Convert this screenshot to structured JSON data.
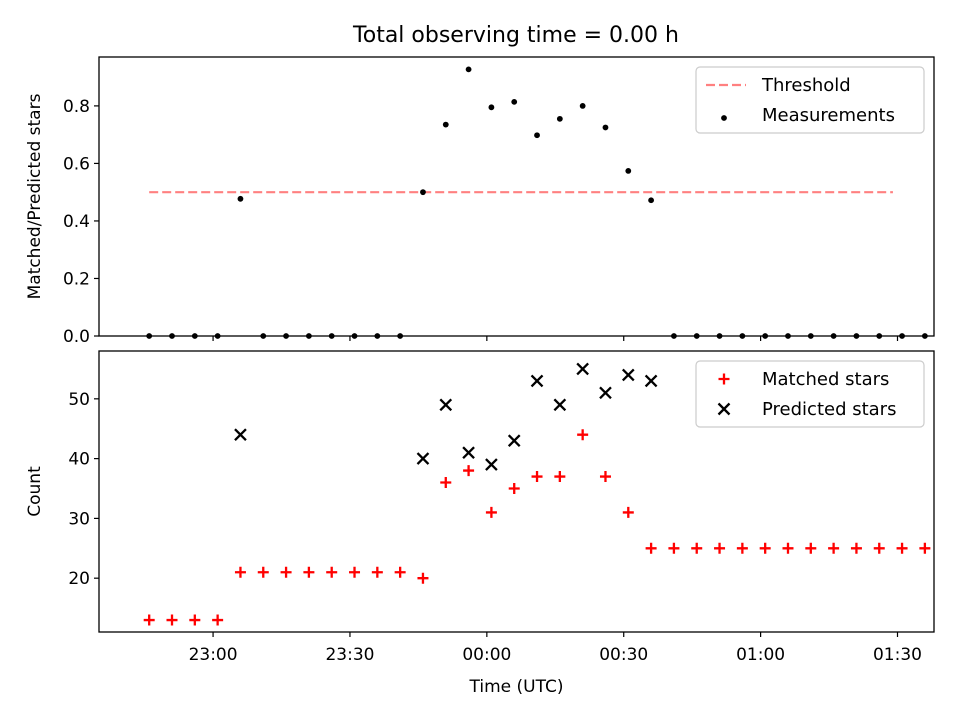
{
  "title": "Total observing time = 0.00 h",
  "colors": {
    "threshold": "#ff8080",
    "measurement": "#000000",
    "matched": "#ff0000",
    "predicted": "#000000"
  },
  "chart_data": [
    {
      "type": "scatter",
      "ylabel": "Matched/Predicted stars",
      "xlabel": "",
      "ylim": [
        0,
        0.97
      ],
      "yticks": [
        "0.0",
        "0.2",
        "0.4",
        "0.6",
        "0.8"
      ],
      "grid": false,
      "legend": {
        "position": "top-right",
        "entries": [
          "Threshold",
          "Measurements"
        ]
      },
      "threshold": {
        "name": "Threshold",
        "value": 0.5,
        "x_range": [
          "22:46",
          "01:29"
        ]
      },
      "series": [
        {
          "name": "Measurements",
          "marker": "dot",
          "x": [
            "22:46",
            "22:51",
            "22:56",
            "23:01",
            "23:06",
            "23:11",
            "23:16",
            "23:21",
            "23:26",
            "23:31",
            "23:36",
            "23:41",
            "23:46",
            "23:51",
            "23:56",
            "00:01",
            "00:06",
            "00:11",
            "00:16",
            "00:21",
            "00:26",
            "00:31",
            "00:36",
            "00:41",
            "00:46",
            "00:51",
            "00:56",
            "01:01",
            "01:06",
            "01:11",
            "01:16",
            "01:21",
            "01:26",
            "01:31",
            "01:36"
          ],
          "y": [
            0,
            0,
            0,
            0,
            0.477,
            0,
            0,
            0,
            0,
            0,
            0,
            0,
            0.5,
            0.735,
            0.927,
            0.795,
            0.814,
            0.698,
            0.755,
            0.8,
            0.725,
            0.574,
            0.472,
            0,
            0,
            0,
            0,
            0,
            0,
            0,
            0,
            0,
            0,
            0,
            0
          ]
        }
      ]
    },
    {
      "type": "scatter",
      "ylabel": "Count",
      "xlabel": "Time (UTC)",
      "ylim": [
        11,
        58
      ],
      "yticks": [
        "20",
        "30",
        "40",
        "50"
      ],
      "xticks": [
        "23:00",
        "23:30",
        "00:00",
        "00:30",
        "01:00",
        "01:30"
      ],
      "grid": false,
      "legend": {
        "position": "top-right",
        "entries": [
          "Matched stars",
          "Predicted stars"
        ]
      },
      "series": [
        {
          "name": "Matched stars",
          "marker": "plus",
          "x": [
            "22:46",
            "22:51",
            "22:56",
            "23:01",
            "23:06",
            "23:11",
            "23:16",
            "23:21",
            "23:26",
            "23:31",
            "23:36",
            "23:41",
            "23:46",
            "23:51",
            "23:56",
            "00:01",
            "00:06",
            "00:11",
            "00:16",
            "00:21",
            "00:26",
            "00:31",
            "00:36",
            "00:41",
            "00:46",
            "00:51",
            "00:56",
            "01:01",
            "01:06",
            "01:11",
            "01:16",
            "01:21",
            "01:26",
            "01:31",
            "01:36"
          ],
          "y": [
            13,
            13,
            13,
            13,
            21,
            21,
            21,
            21,
            21,
            21,
            21,
            21,
            20,
            36,
            38,
            31,
            35,
            37,
            37,
            44,
            37,
            31,
            25,
            25,
            25,
            25,
            25,
            25,
            25,
            25,
            25,
            25,
            25,
            25,
            25
          ]
        },
        {
          "name": "Predicted stars",
          "marker": "x",
          "x": [
            "23:06",
            "23:46",
            "23:51",
            "23:56",
            "00:01",
            "00:06",
            "00:11",
            "00:16",
            "00:21",
            "00:26",
            "00:31",
            "00:36"
          ],
          "y": [
            44,
            40,
            49,
            41,
            39,
            43,
            53,
            49,
            55,
            51,
            54,
            53
          ]
        }
      ]
    }
  ]
}
